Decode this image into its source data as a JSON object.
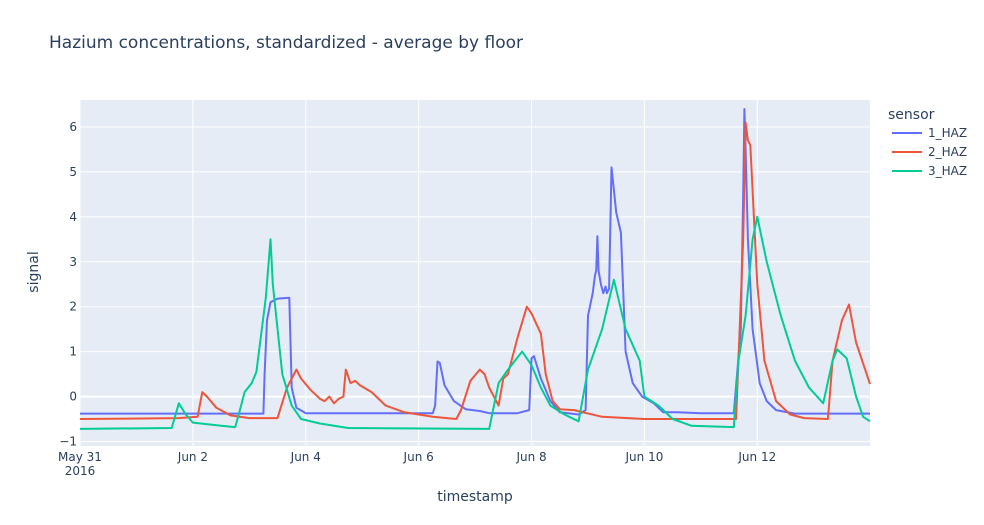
{
  "chart_data": {
    "type": "line",
    "title": "Hazium concentrations, standardized - average by floor",
    "xlabel": "timestamp",
    "ylabel": "signal",
    "xlim": [
      "2016-05-31 00:00",
      "2016-06-13 23:55"
    ],
    "ylim": [
      -1.1,
      6.6
    ],
    "x_ticks": [
      {
        "value": "2016-05-31",
        "label": "May 31",
        "sublabel": "2016"
      },
      {
        "value": "2016-06-02",
        "label": "Jun 2"
      },
      {
        "value": "2016-06-04",
        "label": "Jun 4"
      },
      {
        "value": "2016-06-06",
        "label": "Jun 6"
      },
      {
        "value": "2016-06-08",
        "label": "Jun 8"
      },
      {
        "value": "2016-06-10",
        "label": "Jun 10"
      },
      {
        "value": "2016-06-12",
        "label": "Jun 12"
      }
    ],
    "y_ticks": [
      -1,
      0,
      1,
      2,
      3,
      4,
      5,
      6
    ],
    "y_tick_labels": [
      "−1",
      "0",
      "1",
      "2",
      "3",
      "4",
      "5",
      "6"
    ],
    "grid": true,
    "legend_title": "sensor",
    "legend_position": "right",
    "plot_background": "#e5ecf6",
    "series": [
      {
        "name": "1_HAZ",
        "color": "#636efa",
        "points": [
          [
            "2016-05-31 00:00",
            -0.38
          ],
          [
            "2016-06-03 06:00",
            -0.38
          ],
          [
            "2016-06-03 06:30",
            0.5
          ],
          [
            "2016-06-03 07:30",
            1.7
          ],
          [
            "2016-06-03 09:00",
            2.1
          ],
          [
            "2016-06-03 12:00",
            2.18
          ],
          [
            "2016-06-03 17:00",
            2.2
          ],
          [
            "2016-06-03 18:00",
            0.2
          ],
          [
            "2016-06-03 20:00",
            -0.25
          ],
          [
            "2016-06-04 00:00",
            -0.37
          ],
          [
            "2016-06-06 06:00",
            -0.37
          ],
          [
            "2016-06-06 07:00",
            -0.2
          ],
          [
            "2016-06-06 08:00",
            0.78
          ],
          [
            "2016-06-06 09:00",
            0.75
          ],
          [
            "2016-06-06 11:00",
            0.25
          ],
          [
            "2016-06-06 15:00",
            -0.1
          ],
          [
            "2016-06-06 20:00",
            -0.28
          ],
          [
            "2016-06-07 02:00",
            -0.32
          ],
          [
            "2016-06-07 06:00",
            -0.37
          ],
          [
            "2016-06-07 18:00",
            -0.37
          ],
          [
            "2016-06-07 23:00",
            -0.3
          ],
          [
            "2016-06-08 00:00",
            0.85
          ],
          [
            "2016-06-08 01:00",
            0.9
          ],
          [
            "2016-06-08 04:00",
            0.4
          ],
          [
            "2016-06-08 08:00",
            -0.1
          ],
          [
            "2016-06-08 12:00",
            -0.35
          ],
          [
            "2016-06-08 20:00",
            -0.4
          ],
          [
            "2016-06-08 23:00",
            -0.3
          ],
          [
            "2016-06-09 00:00",
            1.8
          ],
          [
            "2016-06-09 02:00",
            2.3
          ],
          [
            "2016-06-09 03:00",
            2.7
          ],
          [
            "2016-06-09 03:30",
            2.8
          ],
          [
            "2016-06-09 04:00",
            3.57
          ],
          [
            "2016-06-09 04:30",
            2.8
          ],
          [
            "2016-06-09 05:30",
            2.5
          ],
          [
            "2016-06-09 06:30",
            2.3
          ],
          [
            "2016-06-09 07:30",
            2.45
          ],
          [
            "2016-06-09 08:00",
            2.3
          ],
          [
            "2016-06-09 09:00",
            2.4
          ],
          [
            "2016-06-09 10:00",
            5.1
          ],
          [
            "2016-06-09 11:00",
            4.6
          ],
          [
            "2016-06-09 12:00",
            4.1
          ],
          [
            "2016-06-09 14:00",
            3.65
          ],
          [
            "2016-06-09 16:00",
            1.0
          ],
          [
            "2016-06-09 19:00",
            0.3
          ],
          [
            "2016-06-09 23:00",
            0.0
          ],
          [
            "2016-06-10 04:00",
            -0.15
          ],
          [
            "2016-06-10 08:00",
            -0.35
          ],
          [
            "2016-06-10 14:00",
            -0.35
          ],
          [
            "2016-06-11 00:00",
            -0.37
          ],
          [
            "2016-06-11 14:00",
            -0.37
          ],
          [
            "2016-06-11 17:00",
            1.5
          ],
          [
            "2016-06-11 18:00",
            4.5
          ],
          [
            "2016-06-11 18:30",
            6.4
          ],
          [
            "2016-06-11 19:00",
            5.5
          ],
          [
            "2016-06-11 20:00",
            3.5
          ],
          [
            "2016-06-11 22:00",
            1.5
          ],
          [
            "2016-06-12 01:00",
            0.3
          ],
          [
            "2016-06-12 04:00",
            -0.1
          ],
          [
            "2016-06-12 08:00",
            -0.3
          ],
          [
            "2016-06-12 16:00",
            -0.38
          ],
          [
            "2016-06-13 23:55",
            -0.38
          ]
        ]
      },
      {
        "name": "2_HAZ",
        "color": "#ef553b",
        "points": [
          [
            "2016-05-31 00:00",
            -0.5
          ],
          [
            "2016-06-01 18:00",
            -0.48
          ],
          [
            "2016-06-02 02:00",
            -0.45
          ],
          [
            "2016-06-02 04:00",
            0.1
          ],
          [
            "2016-06-02 06:00",
            0.0
          ],
          [
            "2016-06-02 10:00",
            -0.25
          ],
          [
            "2016-06-02 16:00",
            -0.42
          ],
          [
            "2016-06-03 00:00",
            -0.48
          ],
          [
            "2016-06-03 12:00",
            -0.48
          ],
          [
            "2016-06-03 16:00",
            0.2
          ],
          [
            "2016-06-03 20:00",
            0.6
          ],
          [
            "2016-06-03 22:00",
            0.4
          ],
          [
            "2016-06-04 02:00",
            0.15
          ],
          [
            "2016-06-04 06:00",
            -0.05
          ],
          [
            "2016-06-04 08:00",
            -0.1
          ],
          [
            "2016-06-04 10:00",
            0.0
          ],
          [
            "2016-06-04 12:00",
            -0.15
          ],
          [
            "2016-06-04 14:00",
            -0.05
          ],
          [
            "2016-06-04 16:00",
            0.0
          ],
          [
            "2016-06-04 17:00",
            0.6
          ],
          [
            "2016-06-04 19:00",
            0.3
          ],
          [
            "2016-06-04 21:00",
            0.35
          ],
          [
            "2016-06-04 23:00",
            0.25
          ],
          [
            "2016-06-05 04:00",
            0.1
          ],
          [
            "2016-06-05 10:00",
            -0.2
          ],
          [
            "2016-06-05 18:00",
            -0.35
          ],
          [
            "2016-06-06 06:00",
            -0.45
          ],
          [
            "2016-06-06 16:00",
            -0.5
          ],
          [
            "2016-06-06 18:00",
            -0.3
          ],
          [
            "2016-06-06 22:00",
            0.35
          ],
          [
            "2016-06-07 02:00",
            0.6
          ],
          [
            "2016-06-07 04:00",
            0.5
          ],
          [
            "2016-06-07 06:00",
            0.2
          ],
          [
            "2016-06-07 10:00",
            -0.2
          ],
          [
            "2016-06-07 12:00",
            0.4
          ],
          [
            "2016-06-07 14:00",
            0.5
          ],
          [
            "2016-06-07 18:00",
            1.3
          ],
          [
            "2016-06-07 22:00",
            2.0
          ],
          [
            "2016-06-08 00:00",
            1.85
          ],
          [
            "2016-06-08 04:00",
            1.4
          ],
          [
            "2016-06-08 06:00",
            0.5
          ],
          [
            "2016-06-08 09:00",
            -0.1
          ],
          [
            "2016-06-08 12:00",
            -0.28
          ],
          [
            "2016-06-08 18:00",
            -0.3
          ],
          [
            "2016-06-09 06:00",
            -0.45
          ],
          [
            "2016-06-10 00:00",
            -0.5
          ],
          [
            "2016-06-11 15:00",
            -0.5
          ],
          [
            "2016-06-11 18:00",
            3.5
          ],
          [
            "2016-06-11 19:00",
            6.1
          ],
          [
            "2016-06-11 20:00",
            5.7
          ],
          [
            "2016-06-11 21:00",
            5.6
          ],
          [
            "2016-06-12 00:00",
            2.5
          ],
          [
            "2016-06-12 03:00",
            0.8
          ],
          [
            "2016-06-12 08:00",
            -0.1
          ],
          [
            "2016-06-12 14:00",
            -0.4
          ],
          [
            "2016-06-12 20:00",
            -0.48
          ],
          [
            "2016-06-13 06:00",
            -0.5
          ],
          [
            "2016-06-13 08:00",
            0.8
          ],
          [
            "2016-06-13 12:00",
            1.7
          ],
          [
            "2016-06-13 15:00",
            2.05
          ],
          [
            "2016-06-13 18:00",
            1.2
          ],
          [
            "2016-06-13 23:55",
            0.28
          ]
        ]
      },
      {
        "name": "3_HAZ",
        "color": "#00cc96",
        "points": [
          [
            "2016-05-31 00:00",
            -0.72
          ],
          [
            "2016-06-01 15:00",
            -0.7
          ],
          [
            "2016-06-01 18:00",
            -0.15
          ],
          [
            "2016-06-01 21:00",
            -0.4
          ],
          [
            "2016-06-02 00:00",
            -0.58
          ],
          [
            "2016-06-02 12:00",
            -0.65
          ],
          [
            "2016-06-02 18:00",
            -0.68
          ],
          [
            "2016-06-02 20:00",
            -0.3
          ],
          [
            "2016-06-02 22:00",
            0.1
          ],
          [
            "2016-06-03 01:00",
            0.3
          ],
          [
            "2016-06-03 03:00",
            0.55
          ],
          [
            "2016-06-03 07:00",
            2.2
          ],
          [
            "2016-06-03 09:00",
            3.5
          ],
          [
            "2016-06-03 10:00",
            2.5
          ],
          [
            "2016-06-03 14:00",
            0.5
          ],
          [
            "2016-06-03 18:00",
            -0.2
          ],
          [
            "2016-06-03 22:00",
            -0.5
          ],
          [
            "2016-06-04 06:00",
            -0.6
          ],
          [
            "2016-06-04 18:00",
            -0.7
          ],
          [
            "2016-06-07 06:00",
            -0.72
          ],
          [
            "2016-06-07 10:00",
            0.3
          ],
          [
            "2016-06-07 14:00",
            0.6
          ],
          [
            "2016-06-07 20:00",
            1.0
          ],
          [
            "2016-06-08 00:00",
            0.7
          ],
          [
            "2016-06-08 04:00",
            0.2
          ],
          [
            "2016-06-08 08:00",
            -0.2
          ],
          [
            "2016-06-08 14:00",
            -0.4
          ],
          [
            "2016-06-08 20:00",
            -0.55
          ],
          [
            "2016-06-09 00:00",
            0.6
          ],
          [
            "2016-06-09 06:00",
            1.5
          ],
          [
            "2016-06-09 11:00",
            2.6
          ],
          [
            "2016-06-09 16:00",
            1.5
          ],
          [
            "2016-06-09 22:00",
            0.8
          ],
          [
            "2016-06-10 00:00",
            0.0
          ],
          [
            "2016-06-10 06:00",
            -0.2
          ],
          [
            "2016-06-10 12:00",
            -0.5
          ],
          [
            "2016-06-10 20:00",
            -0.65
          ],
          [
            "2016-06-11 14:00",
            -0.68
          ],
          [
            "2016-06-11 16:00",
            0.8
          ],
          [
            "2016-06-11 19:00",
            1.8
          ],
          [
            "2016-06-11 22:00",
            3.5
          ],
          [
            "2016-06-12 00:00",
            4.0
          ],
          [
            "2016-06-12 04:00",
            3.0
          ],
          [
            "2016-06-12 10:00",
            1.8
          ],
          [
            "2016-06-12 16:00",
            0.8
          ],
          [
            "2016-06-12 22:00",
            0.2
          ],
          [
            "2016-06-13 04:00",
            -0.15
          ],
          [
            "2016-06-13 08:00",
            0.8
          ],
          [
            "2016-06-13 10:00",
            1.05
          ],
          [
            "2016-06-13 14:00",
            0.85
          ],
          [
            "2016-06-13 18:00",
            0.0
          ],
          [
            "2016-06-13 21:00",
            -0.45
          ],
          [
            "2016-06-13 23:55",
            -0.55
          ]
        ]
      }
    ]
  }
}
